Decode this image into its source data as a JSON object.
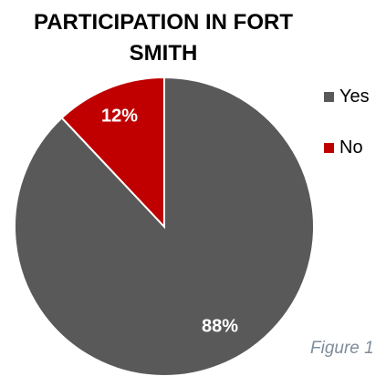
{
  "chart_data": {
    "type": "pie",
    "title": "PARTICIPATION IN FORT SMITH",
    "slices": [
      {
        "label": "Yes",
        "value": 88,
        "display": "88%",
        "color": "#595959"
      },
      {
        "label": "No",
        "value": 12,
        "display": "12%",
        "color": "#c00000"
      }
    ],
    "legend_position": "right",
    "start_angle_deg": 0,
    "direction": "clockwise"
  },
  "caption": "Figure 1",
  "colors": {
    "label_text": "#ffffff",
    "slice_border": "#ffffff",
    "caption": "#7f8c99"
  }
}
